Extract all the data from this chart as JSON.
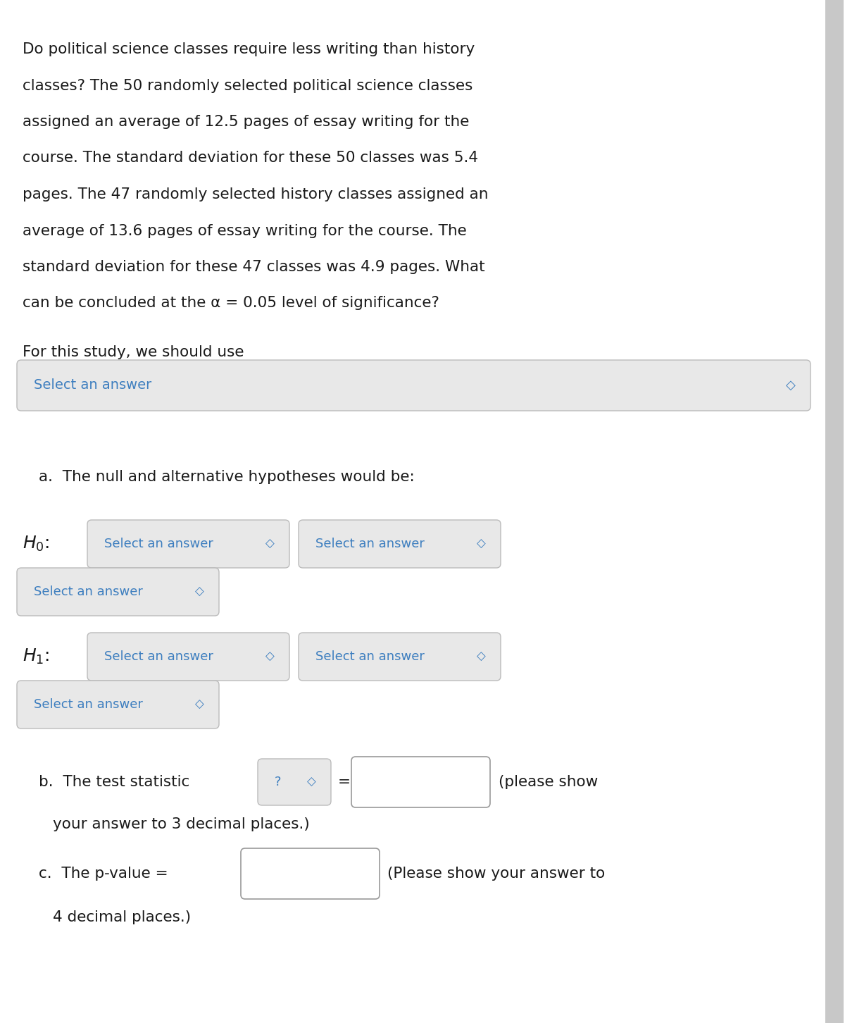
{
  "bg_color": "#ffffff",
  "text_color": "#1a1a1a",
  "blue_color": "#3d7ebf",
  "dropdown_bg": "#e8e8e8",
  "dropdown_border": "#bbbbbb",
  "input_box_color": "#ffffff",
  "input_box_border": "#999999",
  "lines": [
    "Do political science classes require less writing than history",
    "classes? The 50 randomly selected political science classes",
    "assigned an average of 12.5 pages of essay writing for the",
    "course. The standard deviation for these 50 classes was 5.4",
    "pages. The 47 randomly selected history classes assigned an",
    "average of 13.6 pages of essay writing for the course. The",
    "standard deviation for these 47 classes was 4.9 pages. What",
    "can be concluded at the α = 0.05 level of significance?"
  ],
  "for_this_study": "For this study, we should use",
  "select_answer": "Select an answer",
  "part_a": "a.  The null and alternative hypotheses would be:",
  "part_b_text": "b.  The test statistic",
  "part_b_eq": "=",
  "part_b_please": "(please show",
  "part_b_note": "your answer to 3 decimal places.)",
  "part_c_text": "c.  The p-value =",
  "part_c_note": "(Please show your answer to",
  "part_c_note2": "4 decimal places.)",
  "chevron": "◇",
  "scrollbar_color": "#c8c8c8"
}
